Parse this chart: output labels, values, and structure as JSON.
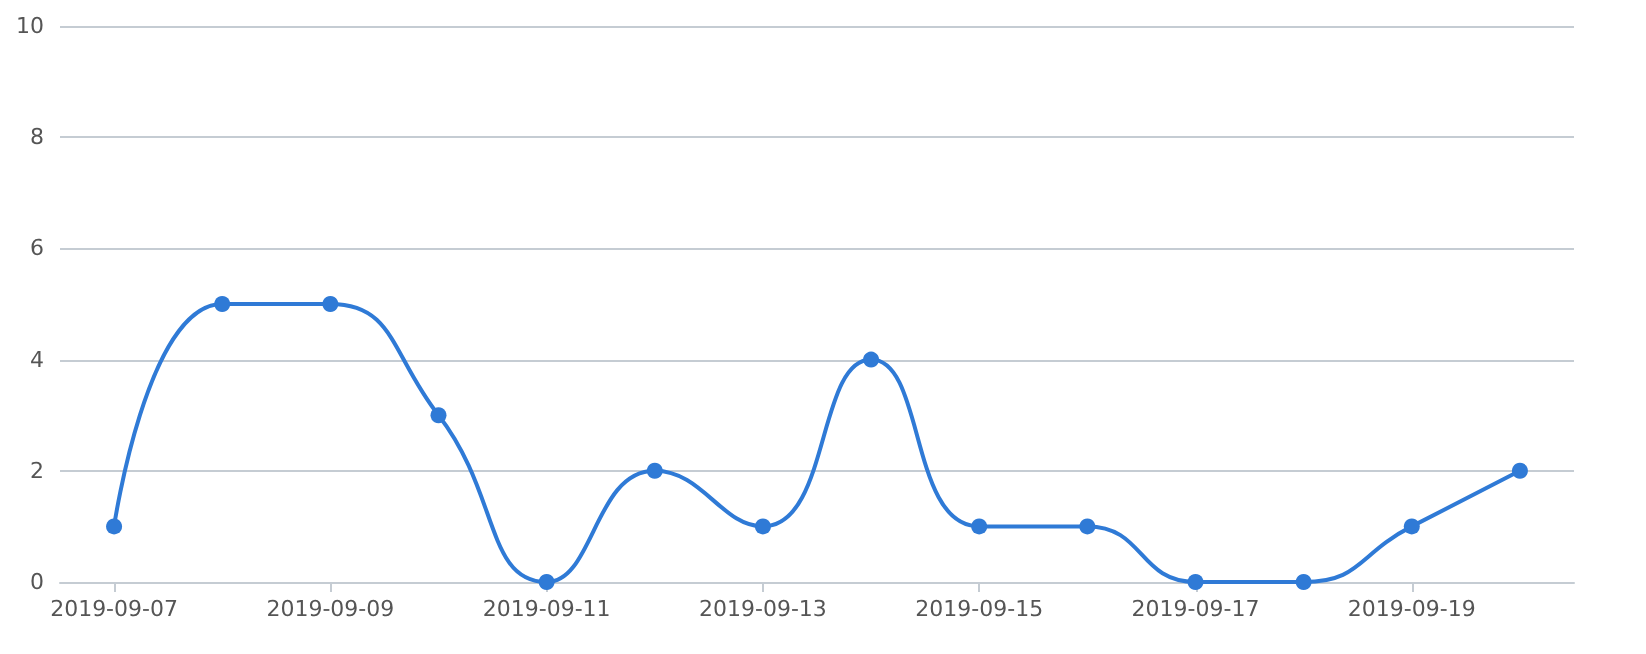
{
  "chart_data": {
    "type": "line",
    "x": [
      "2019-09-07",
      "2019-09-08",
      "2019-09-09",
      "2019-09-10",
      "2019-09-11",
      "2019-09-12",
      "2019-09-13",
      "2019-09-14",
      "2019-09-15",
      "2019-09-16",
      "2019-09-17",
      "2019-09-18",
      "2019-09-19",
      "2019-09-20"
    ],
    "series": [
      {
        "color": "#2f7ad6",
        "values": [
          1,
          5,
          5,
          3,
          0,
          2,
          1,
          4,
          1,
          1,
          0,
          0,
          1,
          2
        ]
      }
    ],
    "xlim": [
      "2019-09-06T12:00",
      "2019-09-20T12:00"
    ],
    "xticks": [
      "2019-09-07",
      "2019-09-09",
      "2019-09-11",
      "2019-09-13",
      "2019-09-15",
      "2019-09-17",
      "2019-09-19"
    ],
    "ylim": [
      0,
      10
    ],
    "yticks": [
      0,
      2,
      4,
      6,
      8,
      10
    ],
    "grid": "y",
    "marker": "circle",
    "line_style": "solid"
  }
}
